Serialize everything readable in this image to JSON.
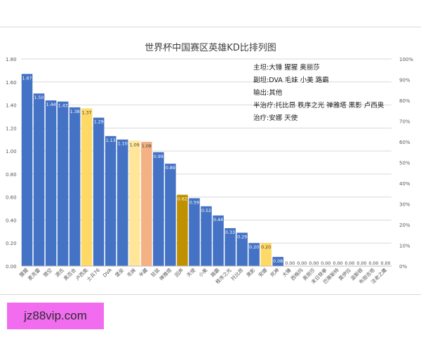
{
  "chart_data": {
    "type": "bar",
    "title": "世界杯中国赛区英雄KD比排列图",
    "xlabel": "",
    "ylabel": "",
    "ylim": [
      0,
      1.8
    ],
    "y_ticks": [
      "0.00",
      "0.20",
      "0.40",
      "0.60",
      "0.80",
      "1.00",
      "1.20",
      "1.40",
      "1.60",
      "1.80"
    ],
    "y2_ticks": [
      "0%",
      "10%",
      "20%",
      "30%",
      "40%",
      "50%",
      "60%",
      "70%",
      "80%",
      "90%",
      "100%"
    ],
    "grid": true,
    "categories": [
      "猩猩",
      "麦克雷",
      "猎空",
      "源氏",
      "黑百合",
      "卢西奥",
      "士兵76",
      "DVA",
      "堡垒",
      "毛妹",
      "半藏",
      "狂鼠",
      "禅雅塔",
      "回声",
      "天使",
      "小美",
      "路霸",
      "秩序之光",
      "托比昂",
      "黑影",
      "安娜",
      "死神",
      "大锤",
      "西格玛",
      "奥丽莎",
      "末日铁拳",
      "巴蒂斯特",
      "莫伊拉",
      "温斯顿",
      "布丽吉塔",
      "法老之鹰"
    ],
    "values": [
      1.67,
      1.5,
      1.44,
      1.43,
      1.38,
      1.37,
      1.29,
      1.13,
      1.1,
      1.09,
      1.08,
      0.99,
      0.89,
      0.62,
      0.59,
      0.52,
      0.44,
      0.33,
      0.29,
      0.2,
      0.2,
      0.08,
      0,
      0,
      0,
      0,
      0,
      0,
      0,
      0,
      0
    ],
    "value_labels": [
      "1.67",
      "1.50",
      "1.44",
      "1.43",
      "1.38",
      "1.37",
      "1.29",
      "1.13",
      "1.10",
      "1.09",
      "1.08",
      "0.99",
      "0.89",
      "0.62",
      "0.59",
      "0.52",
      "0.44",
      "0.33",
      "0.29",
      "0.20",
      "0.20",
      "0.08",
      "0.00",
      "0.00",
      "0.00",
      "0.00",
      "0.00",
      "0.00",
      "0.00",
      "0.00",
      "0.00"
    ],
    "bar_colors": [
      "#4472c4",
      "#4472c4",
      "#4472c4",
      "#4472c4",
      "#4472c4",
      "#ffd966",
      "#4472c4",
      "#4472c4",
      "#4472c4",
      "#ffe699",
      "#f4b183",
      "#4472c4",
      "#4472c4",
      "#bf9000",
      "#4472c4",
      "#4472c4",
      "#4472c4",
      "#4472c4",
      "#4472c4",
      "#4472c4",
      "#ffd966",
      "#4472c4",
      "#4472c4",
      "#4472c4",
      "#4472c4",
      "#4472c4",
      "#4472c4",
      "#4472c4",
      "#4472c4",
      "#4472c4",
      "#4472c4"
    ],
    "annotations": [
      "主坦:大锤 猩猩 奥丽莎",
      "副坦:DVA 毛妹 小美 路霸",
      "输出:其他",
      "半治疗:托比昂 秩序之光 禅雅塔 黑影 卢西奥",
      "治疗:安娜 天使"
    ]
  },
  "watermark": {
    "text": "jz88vip.com",
    "color": "#f26cf0"
  }
}
